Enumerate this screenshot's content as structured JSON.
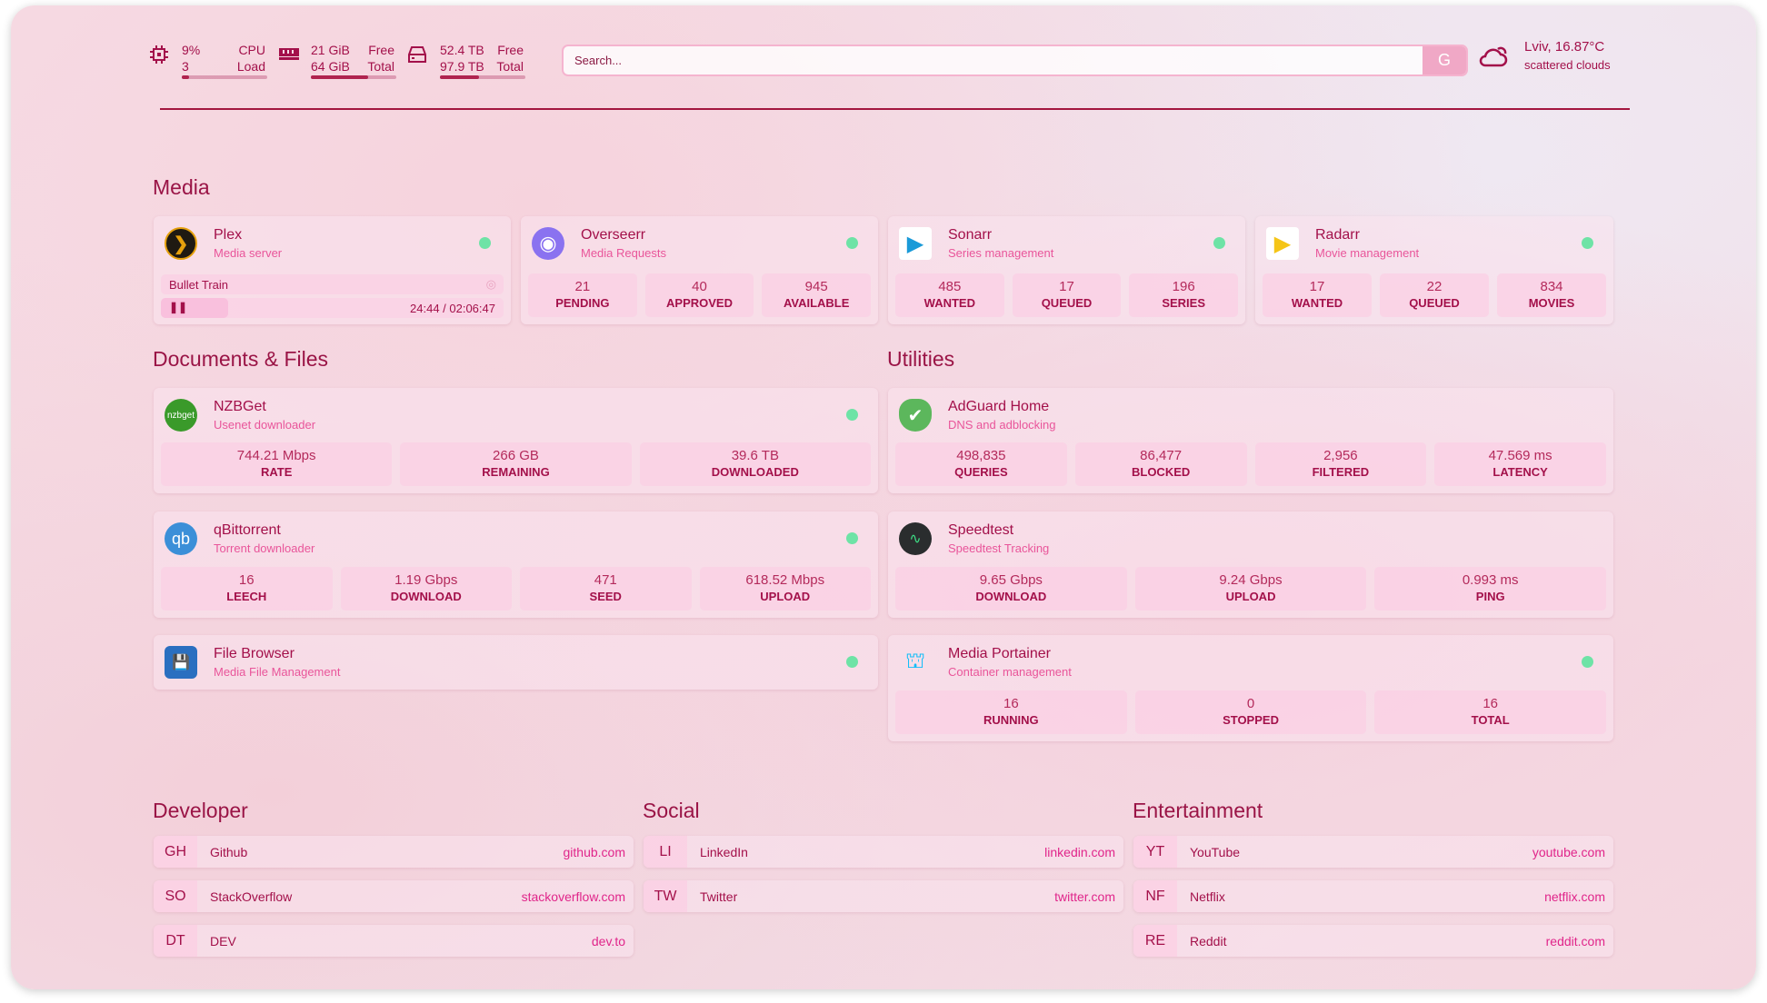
{
  "header": {
    "cpu": {
      "value": "9%",
      "load": "3",
      "label1": "CPU",
      "label2": "Load",
      "percent": 9,
      "icon": "cpu-icon"
    },
    "memory": {
      "free": "21 GiB",
      "total": "64 GiB",
      "label1": "Free",
      "label2": "Total",
      "percent": 67,
      "icon": "memory-icon"
    },
    "disk": {
      "free": "52.4 TB",
      "total": "97.9 TB",
      "label1": "Free",
      "label2": "Total",
      "percent": 46,
      "icon": "disk-icon"
    },
    "search": {
      "placeholder": "Search...",
      "button": "G"
    },
    "weather": {
      "location": "Lviv, 16.87°C",
      "condition": "scattered clouds",
      "icon": "cloud-sun-icon"
    }
  },
  "sections": {
    "media": "Media",
    "docs": "Documents & Files",
    "utilities": "Utilities",
    "developer": "Developer",
    "social": "Social",
    "entertainment": "Entertainment"
  },
  "plex": {
    "title": "Plex",
    "subtitle": "Media server",
    "now_playing": "Bullet Train",
    "time": "24:44 / 02:06:47",
    "progress": 19.5
  },
  "overseerr": {
    "title": "Overseerr",
    "subtitle": "Media Requests",
    "stats": [
      {
        "v": "21",
        "l": "PENDING"
      },
      {
        "v": "40",
        "l": "APPROVED"
      },
      {
        "v": "945",
        "l": "AVAILABLE"
      }
    ]
  },
  "sonarr": {
    "title": "Sonarr",
    "subtitle": "Series management",
    "stats": [
      {
        "v": "485",
        "l": "WANTED"
      },
      {
        "v": "17",
        "l": "QUEUED"
      },
      {
        "v": "196",
        "l": "SERIES"
      }
    ]
  },
  "radarr": {
    "title": "Radarr",
    "subtitle": "Movie management",
    "stats": [
      {
        "v": "17",
        "l": "WANTED"
      },
      {
        "v": "22",
        "l": "QUEUED"
      },
      {
        "v": "834",
        "l": "MOVIES"
      }
    ]
  },
  "nzbget": {
    "title": "NZBGet",
    "subtitle": "Usenet downloader",
    "logo": "nzbget",
    "stats": [
      {
        "v": "744.21 Mbps",
        "l": "RATE"
      },
      {
        "v": "266 GB",
        "l": "REMAINING"
      },
      {
        "v": "39.6 TB",
        "l": "DOWNLOADED"
      }
    ]
  },
  "qbit": {
    "title": "qBittorrent",
    "subtitle": "Torrent downloader",
    "logo": "qb",
    "stats": [
      {
        "v": "16",
        "l": "LEECH"
      },
      {
        "v": "1.19 Gbps",
        "l": "DOWNLOAD"
      },
      {
        "v": "471",
        "l": "SEED"
      },
      {
        "v": "618.52 Mbps",
        "l": "UPLOAD"
      }
    ]
  },
  "filebrowser": {
    "title": "File Browser",
    "subtitle": "Media File Management"
  },
  "adguard": {
    "title": "AdGuard Home",
    "subtitle": "DNS and adblocking",
    "stats": [
      {
        "v": "498,835",
        "l": "QUERIES"
      },
      {
        "v": "86,477",
        "l": "BLOCKED"
      },
      {
        "v": "2,956",
        "l": "FILTERED"
      },
      {
        "v": "47.569 ms",
        "l": "LATENCY"
      }
    ]
  },
  "speedtest": {
    "title": "Speedtest",
    "subtitle": "Speedtest Tracking",
    "stats": [
      {
        "v": "9.65 Gbps",
        "l": "DOWNLOAD"
      },
      {
        "v": "9.24 Gbps",
        "l": "UPLOAD"
      },
      {
        "v": "0.993 ms",
        "l": "PING"
      }
    ]
  },
  "portainer": {
    "title": "Media Portainer",
    "subtitle": "Container management",
    "stats": [
      {
        "v": "16",
        "l": "RUNNING"
      },
      {
        "v": "0",
        "l": "STOPPED"
      },
      {
        "v": "16",
        "l": "TOTAL"
      }
    ]
  },
  "bookmarks": {
    "developer": [
      {
        "a": "GH",
        "n": "Github",
        "u": "github.com"
      },
      {
        "a": "SO",
        "n": "StackOverflow",
        "u": "stackoverflow.com"
      },
      {
        "a": "DT",
        "n": "DEV",
        "u": "dev.to"
      }
    ],
    "social": [
      {
        "a": "LI",
        "n": "LinkedIn",
        "u": "linkedin.com"
      },
      {
        "a": "TW",
        "n": "Twitter",
        "u": "twitter.com"
      }
    ],
    "entertainment": [
      {
        "a": "YT",
        "n": "YouTube",
        "u": "youtube.com"
      },
      {
        "a": "NF",
        "n": "Netflix",
        "u": "netflix.com"
      },
      {
        "a": "RE",
        "n": "Reddit",
        "u": "reddit.com"
      }
    ]
  },
  "colors": {
    "accent": "#a3104a",
    "subtitle": "#e9559a",
    "status_up": "#6ee3a6"
  }
}
